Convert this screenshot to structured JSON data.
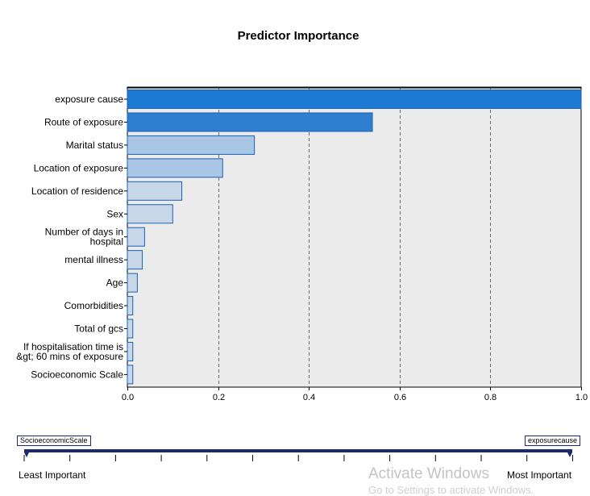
{
  "chart_data": {
    "type": "bar",
    "orientation": "horizontal",
    "title": "Predictor Importance",
    "categories": [
      [
        "exposure cause"
      ],
      [
        "Route of exposure"
      ],
      [
        "Marital status"
      ],
      [
        "Location of exposure"
      ],
      [
        "Location of residence"
      ],
      [
        "Sex"
      ],
      [
        "Number of days in",
        "hospital"
      ],
      [
        "mental illness"
      ],
      [
        "Age"
      ],
      [
        "Comorbidities"
      ],
      [
        "Total of gcs"
      ],
      [
        "If hospitalisation time is",
        "&gt; 60 mins of exposure"
      ],
      [
        "Socioeconomic Scale"
      ]
    ],
    "values": [
      1.0,
      0.54,
      0.28,
      0.21,
      0.12,
      0.1,
      0.038,
      0.033,
      0.022,
      0.012,
      0.012,
      0.012,
      0.012
    ],
    "xlim": [
      0,
      1.0
    ],
    "xticks": [
      "0.0",
      "0.2",
      "0.4",
      "0.6",
      "0.8",
      "1.0"
    ],
    "xtick_values": [
      0,
      0.2,
      0.4,
      0.6,
      0.8,
      1.0
    ],
    "grid": "vertical dashed",
    "xlabel": "",
    "ylabel": "",
    "colors": {
      "bar_top": "#1c79d4",
      "bar_dark": "#2f7fd0",
      "bar_light": "#a9c6e4",
      "bar_pale": "#c7d7e8",
      "bar_stroke": "#1861b7",
      "plot_bg": "#ebebeb"
    }
  },
  "slider": {
    "left_tag": "SocioeconomicScale",
    "right_tag": "exposurecause",
    "left_label": "Least Important",
    "right_label": "Most Important",
    "tick_count": 13
  },
  "watermark": {
    "title": "Activate Windows",
    "subtitle": "Go to Settings to activate Windows."
  }
}
